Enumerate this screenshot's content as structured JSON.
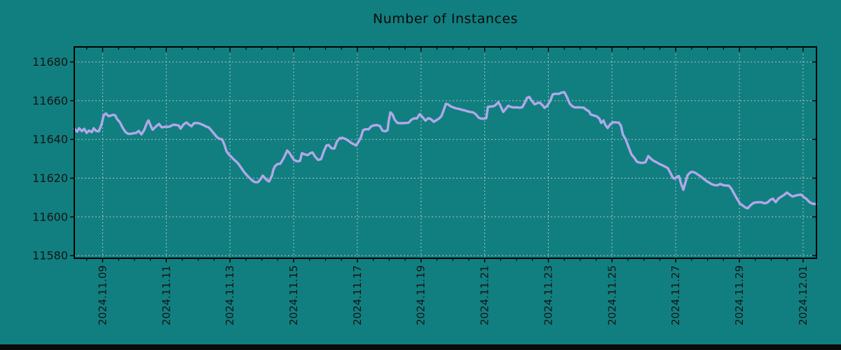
{
  "chart_data": {
    "type": "line",
    "title": "Number of Instances",
    "xlabel": "",
    "ylabel": "",
    "legend": null,
    "grid": "dashed",
    "background_color": "#117f80",
    "line_color": "#b1a8e9",
    "grid_color": "#cccccc",
    "border_color": "#000000",
    "text_color": "#141414",
    "x_unit": "days since 2024.11.09 00:00",
    "x_range": [
      -0.89,
      22.42
    ],
    "y_range": [
      11578.6,
      11687.8
    ],
    "x_tick_positions": [
      0,
      2,
      4,
      6,
      8,
      10,
      12,
      14,
      16,
      18,
      20,
      22
    ],
    "x_tick_labels": [
      "2024.11.09",
      "2024.11.11",
      "2024.11.13",
      "2024.11.15",
      "2024.11.17",
      "2024.11.19",
      "2024.11.21",
      "2024.11.23",
      "2024.11.25",
      "2024.11.27",
      "2024.11.29",
      "2024.12.01"
    ],
    "x_minor_tick_interval": 0.5,
    "y_ticks": [
      11580,
      11600,
      11620,
      11640,
      11660,
      11680
    ],
    "points": [
      [
        -0.89,
        11645.5
      ],
      [
        -0.8,
        11644.0
      ],
      [
        -0.74,
        11645.8
      ],
      [
        -0.65,
        11644.3
      ],
      [
        -0.58,
        11645.5
      ],
      [
        -0.5,
        11643.4
      ],
      [
        -0.43,
        11644.6
      ],
      [
        -0.34,
        11643.8
      ],
      [
        -0.28,
        11645.8
      ],
      [
        -0.21,
        11644.4
      ],
      [
        -0.12,
        11644.2
      ],
      [
        -0.03,
        11648.0
      ],
      [
        0.03,
        11652.3
      ],
      [
        0.1,
        11653.4
      ],
      [
        0.19,
        11652.0
      ],
      [
        0.25,
        11652.3
      ],
      [
        0.32,
        11652.7
      ],
      [
        0.39,
        11652.5
      ],
      [
        0.45,
        11650.6
      ],
      [
        0.54,
        11648.9
      ],
      [
        0.63,
        11646.0
      ],
      [
        0.72,
        11643.8
      ],
      [
        0.8,
        11642.9
      ],
      [
        0.89,
        11642.9
      ],
      [
        0.96,
        11643.2
      ],
      [
        1.05,
        11643.3
      ],
      [
        1.13,
        11644.4
      ],
      [
        1.22,
        11642.6
      ],
      [
        1.31,
        11645.0
      ],
      [
        1.4,
        11648.8
      ],
      [
        1.44,
        11649.8
      ],
      [
        1.51,
        11647.1
      ],
      [
        1.57,
        11645.0
      ],
      [
        1.68,
        11646.8
      ],
      [
        1.77,
        11648.0
      ],
      [
        1.86,
        11646.2
      ],
      [
        1.95,
        11646.5
      ],
      [
        2.04,
        11646.5
      ],
      [
        2.12,
        11646.7
      ],
      [
        2.21,
        11647.6
      ],
      [
        2.3,
        11647.5
      ],
      [
        2.39,
        11647.2
      ],
      [
        2.45,
        11645.6
      ],
      [
        2.54,
        11647.7
      ],
      [
        2.63,
        11648.8
      ],
      [
        2.72,
        11647.6
      ],
      [
        2.79,
        11646.8
      ],
      [
        2.87,
        11648.4
      ],
      [
        2.96,
        11648.5
      ],
      [
        3.05,
        11648.2
      ],
      [
        3.16,
        11647.4
      ],
      [
        3.25,
        11646.7
      ],
      [
        3.34,
        11646.1
      ],
      [
        3.42,
        11644.6
      ],
      [
        3.51,
        11642.8
      ],
      [
        3.6,
        11641.0
      ],
      [
        3.69,
        11640.2
      ],
      [
        3.75,
        11640.1
      ],
      [
        3.82,
        11637.5
      ],
      [
        3.89,
        11633.9
      ],
      [
        3.97,
        11632.1
      ],
      [
        4.06,
        11630.7
      ],
      [
        4.15,
        11629.2
      ],
      [
        4.22,
        11628.2
      ],
      [
        4.28,
        11627.0
      ],
      [
        4.37,
        11624.9
      ],
      [
        4.46,
        11622.8
      ],
      [
        4.55,
        11621.2
      ],
      [
        4.63,
        11619.9
      ],
      [
        4.72,
        11618.5
      ],
      [
        4.79,
        11617.9
      ],
      [
        4.88,
        11617.9
      ],
      [
        4.96,
        11619.5
      ],
      [
        5.03,
        11621.3
      ],
      [
        5.1,
        11620.0
      ],
      [
        5.16,
        11618.9
      ],
      [
        5.23,
        11618.3
      ],
      [
        5.32,
        11621.3
      ],
      [
        5.36,
        11624.2
      ],
      [
        5.41,
        11626.1
      ],
      [
        5.49,
        11627.3
      ],
      [
        5.58,
        11627.4
      ],
      [
        5.67,
        11629.8
      ],
      [
        5.74,
        11632.2
      ],
      [
        5.8,
        11634.3
      ],
      [
        5.87,
        11633.0
      ],
      [
        5.96,
        11630.6
      ],
      [
        6.02,
        11629.3
      ],
      [
        6.11,
        11628.7
      ],
      [
        6.2,
        11628.9
      ],
      [
        6.26,
        11632.9
      ],
      [
        6.35,
        11632.3
      ],
      [
        6.44,
        11631.9
      ],
      [
        6.53,
        11633.0
      ],
      [
        6.59,
        11633.3
      ],
      [
        6.68,
        11631.0
      ],
      [
        6.77,
        11629.4
      ],
      [
        6.86,
        11629.8
      ],
      [
        6.95,
        11634.0
      ],
      [
        7.03,
        11636.9
      ],
      [
        7.1,
        11637.1
      ],
      [
        7.19,
        11635.4
      ],
      [
        7.28,
        11635.3
      ],
      [
        7.36,
        11639.0
      ],
      [
        7.45,
        11640.7
      ],
      [
        7.54,
        11640.8
      ],
      [
        7.63,
        11640.2
      ],
      [
        7.72,
        11639.3
      ],
      [
        7.8,
        11638.3
      ],
      [
        7.89,
        11637.5
      ],
      [
        7.96,
        11636.9
      ],
      [
        8.05,
        11639.2
      ],
      [
        8.11,
        11641.0
      ],
      [
        8.18,
        11644.8
      ],
      [
        8.27,
        11645.3
      ],
      [
        8.35,
        11645.2
      ],
      [
        8.44,
        11646.8
      ],
      [
        8.53,
        11647.3
      ],
      [
        8.62,
        11647.4
      ],
      [
        8.71,
        11646.9
      ],
      [
        8.79,
        11644.5
      ],
      [
        8.88,
        11644.2
      ],
      [
        8.95,
        11644.8
      ],
      [
        8.99,
        11650.0
      ],
      [
        9.04,
        11654.0
      ],
      [
        9.1,
        11653.0
      ],
      [
        9.17,
        11650.3
      ],
      [
        9.26,
        11648.5
      ],
      [
        9.35,
        11648.4
      ],
      [
        9.43,
        11648.4
      ],
      [
        9.52,
        11648.5
      ],
      [
        9.61,
        11648.6
      ],
      [
        9.7,
        11650.2
      ],
      [
        9.79,
        11650.9
      ],
      [
        9.87,
        11650.8
      ],
      [
        9.96,
        11653.1
      ],
      [
        10.05,
        11651.5
      ],
      [
        10.14,
        11649.7
      ],
      [
        10.23,
        11651.0
      ],
      [
        10.31,
        11650.5
      ],
      [
        10.4,
        11649.1
      ],
      [
        10.49,
        11650.0
      ],
      [
        10.58,
        11651.0
      ],
      [
        10.64,
        11652.0
      ],
      [
        10.71,
        11655.0
      ],
      [
        10.78,
        11658.4
      ],
      [
        10.86,
        11658.0
      ],
      [
        10.93,
        11657.1
      ],
      [
        11.02,
        11656.5
      ],
      [
        11.11,
        11656.0
      ],
      [
        11.19,
        11655.8
      ],
      [
        11.28,
        11655.3
      ],
      [
        11.37,
        11655.0
      ],
      [
        11.46,
        11654.5
      ],
      [
        11.55,
        11654.2
      ],
      [
        11.63,
        11654.0
      ],
      [
        11.72,
        11653.0
      ],
      [
        11.81,
        11651.2
      ],
      [
        11.9,
        11650.7
      ],
      [
        11.99,
        11650.8
      ],
      [
        12.05,
        11651.0
      ],
      [
        12.1,
        11656.8
      ],
      [
        12.18,
        11657.0
      ],
      [
        12.27,
        11657.1
      ],
      [
        12.36,
        11658.0
      ],
      [
        12.43,
        11659.3
      ],
      [
        12.49,
        11657.5
      ],
      [
        12.58,
        11654.2
      ],
      [
        12.65,
        11655.5
      ],
      [
        12.74,
        11657.4
      ],
      [
        12.82,
        11656.8
      ],
      [
        12.91,
        11656.5
      ],
      [
        13.0,
        11656.6
      ],
      [
        13.09,
        11656.4
      ],
      [
        13.18,
        11656.6
      ],
      [
        13.26,
        11659.0
      ],
      [
        13.33,
        11661.5
      ],
      [
        13.4,
        11662.0
      ],
      [
        13.48,
        11660.0
      ],
      [
        13.57,
        11658.1
      ],
      [
        13.66,
        11658.8
      ],
      [
        13.73,
        11659.0
      ],
      [
        13.81,
        11657.8
      ],
      [
        13.88,
        11656.3
      ],
      [
        13.97,
        11657.5
      ],
      [
        14.06,
        11660.0
      ],
      [
        14.14,
        11663.3
      ],
      [
        14.23,
        11663.6
      ],
      [
        14.32,
        11663.5
      ],
      [
        14.41,
        11664.2
      ],
      [
        14.5,
        11664.4
      ],
      [
        14.58,
        11662.0
      ],
      [
        14.67,
        11658.5
      ],
      [
        14.76,
        11657.0
      ],
      [
        14.85,
        11656.5
      ],
      [
        14.94,
        11656.6
      ],
      [
        15.02,
        11656.5
      ],
      [
        15.11,
        11656.4
      ],
      [
        15.2,
        11655.2
      ],
      [
        15.27,
        11654.6
      ],
      [
        15.33,
        11652.9
      ],
      [
        15.42,
        11652.4
      ],
      [
        15.51,
        11652.0
      ],
      [
        15.6,
        11650.8
      ],
      [
        15.66,
        11648.5
      ],
      [
        15.73,
        11649.8
      ],
      [
        15.79,
        11647.5
      ],
      [
        15.86,
        11645.9
      ],
      [
        15.95,
        11648.0
      ],
      [
        16.04,
        11648.9
      ],
      [
        16.12,
        11648.8
      ],
      [
        16.21,
        11648.7
      ],
      [
        16.28,
        11647.0
      ],
      [
        16.34,
        11642.5
      ],
      [
        16.43,
        11640.0
      ],
      [
        16.52,
        11636.0
      ],
      [
        16.61,
        11632.3
      ],
      [
        16.7,
        11630.5
      ],
      [
        16.78,
        11628.5
      ],
      [
        16.87,
        11628.0
      ],
      [
        16.96,
        11627.9
      ],
      [
        17.05,
        11628.2
      ],
      [
        17.14,
        11631.4
      ],
      [
        17.22,
        11630.0
      ],
      [
        17.31,
        11628.9
      ],
      [
        17.4,
        11628.2
      ],
      [
        17.49,
        11627.3
      ],
      [
        17.58,
        11626.7
      ],
      [
        17.66,
        11626.0
      ],
      [
        17.75,
        11625.2
      ],
      [
        17.84,
        11622.5
      ],
      [
        17.91,
        11620.2
      ],
      [
        17.97,
        11619.7
      ],
      [
        18.04,
        11620.8
      ],
      [
        18.1,
        11621.1
      ],
      [
        18.17,
        11617.0
      ],
      [
        18.24,
        11614.0
      ],
      [
        18.3,
        11617.5
      ],
      [
        18.37,
        11621.5
      ],
      [
        18.46,
        11623.0
      ],
      [
        18.52,
        11623.3
      ],
      [
        18.61,
        11622.8
      ],
      [
        18.7,
        11621.8
      ],
      [
        18.79,
        11620.8
      ],
      [
        18.87,
        11619.8
      ],
      [
        18.96,
        11618.6
      ],
      [
        19.05,
        11617.7
      ],
      [
        19.14,
        11616.8
      ],
      [
        19.23,
        11616.4
      ],
      [
        19.31,
        11616.3
      ],
      [
        19.4,
        11617.0
      ],
      [
        19.49,
        11616.4
      ],
      [
        19.58,
        11616.2
      ],
      [
        19.67,
        11616.1
      ],
      [
        19.75,
        11614.5
      ],
      [
        19.84,
        11611.8
      ],
      [
        19.93,
        11609.2
      ],
      [
        20.02,
        11606.8
      ],
      [
        20.11,
        11605.8
      ],
      [
        20.19,
        11604.8
      ],
      [
        20.26,
        11604.4
      ],
      [
        20.35,
        11606.0
      ],
      [
        20.44,
        11607.2
      ],
      [
        20.53,
        11607.5
      ],
      [
        20.61,
        11607.6
      ],
      [
        20.7,
        11607.5
      ],
      [
        20.79,
        11607.0
      ],
      [
        20.88,
        11607.4
      ],
      [
        20.97,
        11608.8
      ],
      [
        21.05,
        11609.4
      ],
      [
        21.14,
        11607.6
      ],
      [
        21.23,
        11609.5
      ],
      [
        21.32,
        11610.5
      ],
      [
        21.41,
        11611.4
      ],
      [
        21.49,
        11612.6
      ],
      [
        21.58,
        11611.5
      ],
      [
        21.67,
        11610.5
      ],
      [
        21.76,
        11611.0
      ],
      [
        21.85,
        11611.3
      ],
      [
        21.93,
        11611.5
      ],
      [
        22.02,
        11610.3
      ],
      [
        22.11,
        11609.2
      ],
      [
        22.2,
        11607.6
      ],
      [
        22.29,
        11606.8
      ],
      [
        22.37,
        11606.7
      ],
      [
        22.42,
        11606.7
      ]
    ]
  }
}
